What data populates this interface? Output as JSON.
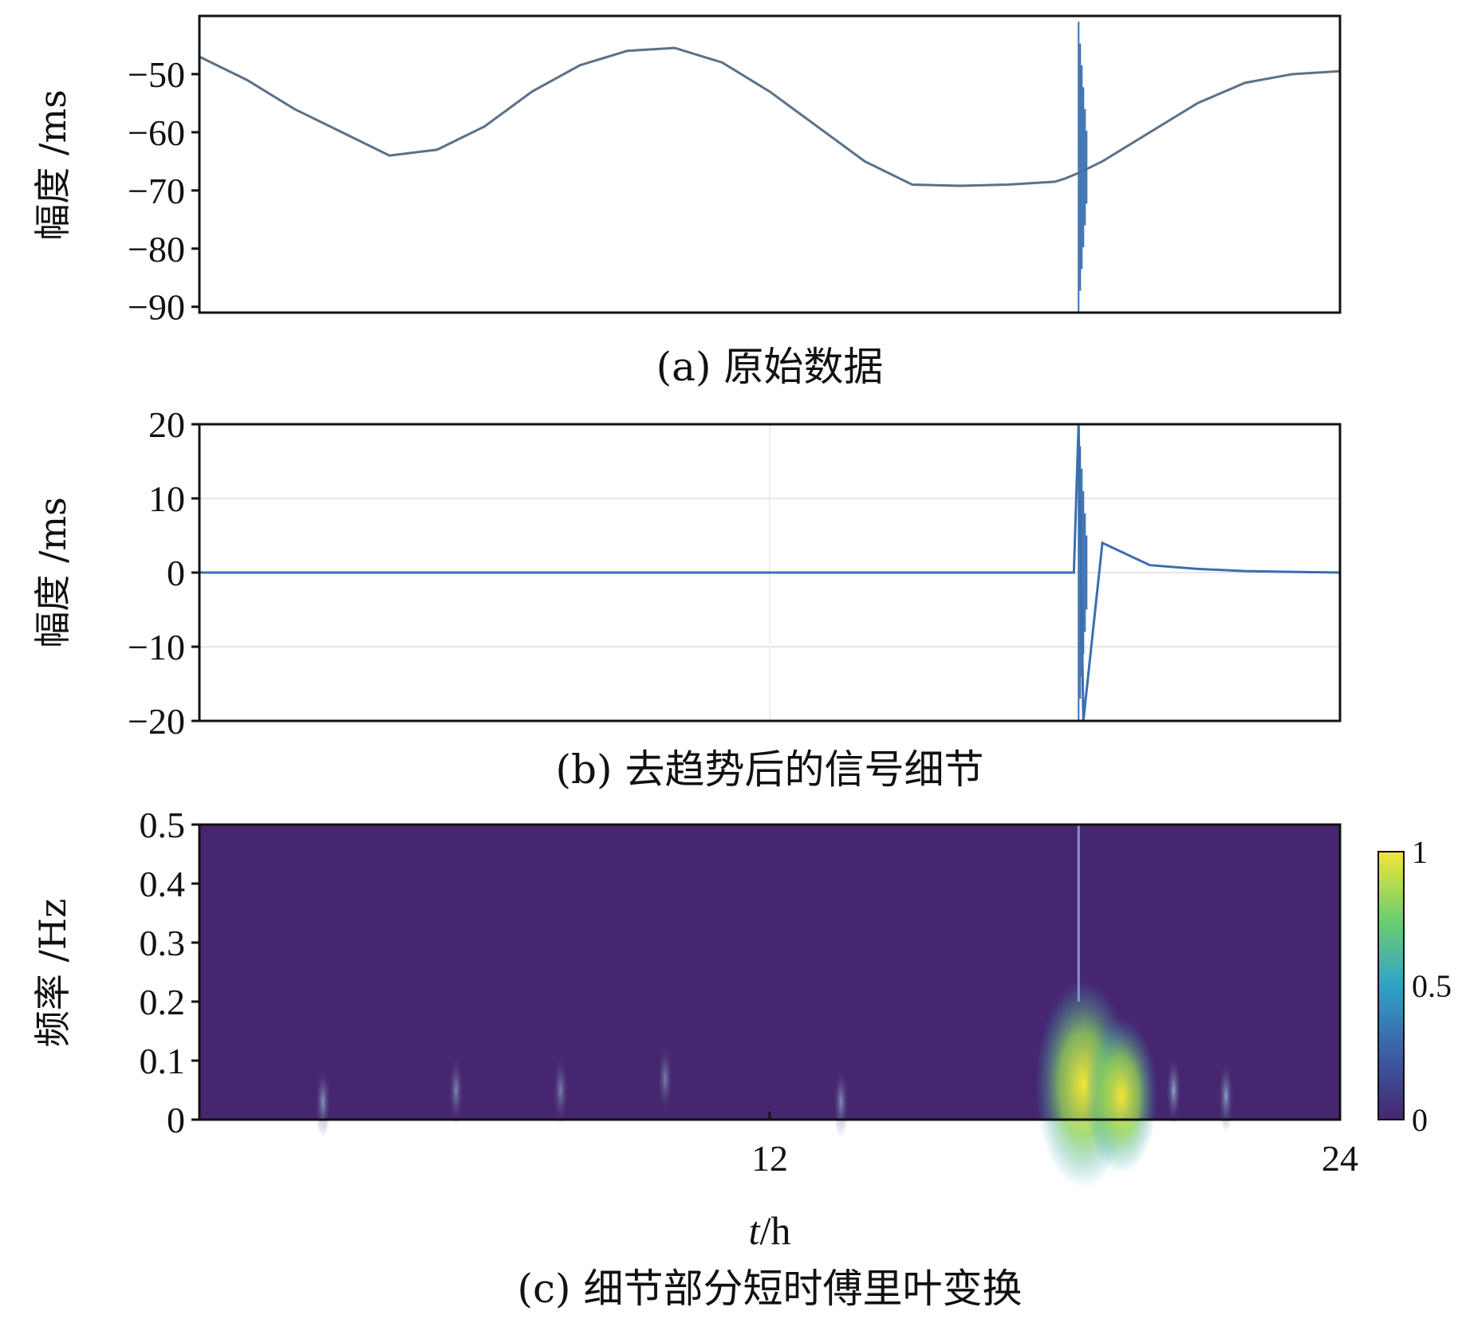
{
  "chart_data": [
    {
      "type": "line",
      "caption": "(a) 原始数据",
      "ylabel": "幅度 /ms",
      "xlim": [
        0,
        24
      ],
      "ylim": [
        -91,
        -40
      ],
      "yticks": [
        -50,
        -60,
        -70,
        -80,
        -90
      ],
      "ytick_labels": [
        "−50",
        "−60",
        "−70",
        "−80",
        "−90"
      ],
      "grid": false,
      "color": "#5b7186",
      "series": [
        {
          "x": [
            0,
            1,
            2,
            3,
            4,
            5,
            6,
            7,
            8,
            9,
            10,
            11,
            12,
            13,
            14,
            15,
            16,
            17,
            18,
            18.2,
            18.5,
            19,
            20,
            21,
            22,
            23,
            24
          ],
          "values": [
            -47,
            -51,
            -56,
            -60,
            -64,
            -63,
            -59,
            -53,
            -48.5,
            -46,
            -45.5,
            -48,
            -53,
            -59,
            -65,
            -69,
            -69.2,
            -69,
            -68.5,
            -68,
            -67,
            -65,
            -60,
            -55,
            -51.5,
            -50,
            -49.5
          ]
        }
      ],
      "burst": {
        "x": 18.5,
        "max": -41,
        "min": -91
      }
    },
    {
      "type": "line",
      "caption": "(b) 去趋势后的信号细节",
      "ylabel": "幅度 /ms",
      "xlim": [
        0,
        24
      ],
      "ylim": [
        -20,
        20
      ],
      "yticks": [
        20,
        10,
        0,
        -10,
        -20
      ],
      "ytick_labels": [
        "20",
        "10",
        "0",
        "−10",
        "−20"
      ],
      "grid": true,
      "color": "#3a6fb0",
      "series": [
        {
          "x": [
            0,
            4,
            8,
            12,
            16,
            18.4,
            18.5,
            18.6,
            19,
            20,
            21,
            22,
            24
          ],
          "values": [
            0,
            0,
            0,
            0,
            0,
            0,
            20,
            -20,
            4,
            1,
            0.5,
            0.2,
            0
          ]
        }
      ],
      "burst": {
        "x": 18.5,
        "max": 20,
        "min": -20
      }
    },
    {
      "type": "heatmap",
      "caption": "(c) 细节部分短时傅里叶变换",
      "ylabel": "频率 /Hz",
      "xlabel": "t/h",
      "xlim": [
        0,
        24
      ],
      "ylim": [
        0,
        0.5
      ],
      "xticks": [
        12,
        24
      ],
      "yticks": [
        0.5,
        0.4,
        0.3,
        0.2,
        0.1,
        0
      ],
      "colorbar": {
        "range": [
          0,
          1
        ],
        "ticks": [
          1,
          0.5,
          0
        ],
        "ticks_labels": [
          "1",
          "0.5",
          "0"
        ]
      },
      "colors": {
        "low": "#46266f",
        "mid": "#2fa3c8",
        "high": "#f4e537"
      },
      "hotspots": [
        {
          "x": 2.6,
          "f": 0.03,
          "level": 0.35
        },
        {
          "x": 5.4,
          "f": 0.05,
          "level": 0.25
        },
        {
          "x": 7.6,
          "f": 0.05,
          "level": 0.2
        },
        {
          "x": 9.8,
          "f": 0.07,
          "level": 0.2
        },
        {
          "x": 13.5,
          "f": 0.03,
          "level": 0.3
        },
        {
          "x": 18.6,
          "f": 0.06,
          "level": 1.0
        },
        {
          "x": 19.4,
          "f": 0.04,
          "level": 0.75
        },
        {
          "x": 20.5,
          "f": 0.05,
          "level": 0.45
        },
        {
          "x": 21.6,
          "f": 0.04,
          "level": 0.4
        }
      ]
    }
  ]
}
